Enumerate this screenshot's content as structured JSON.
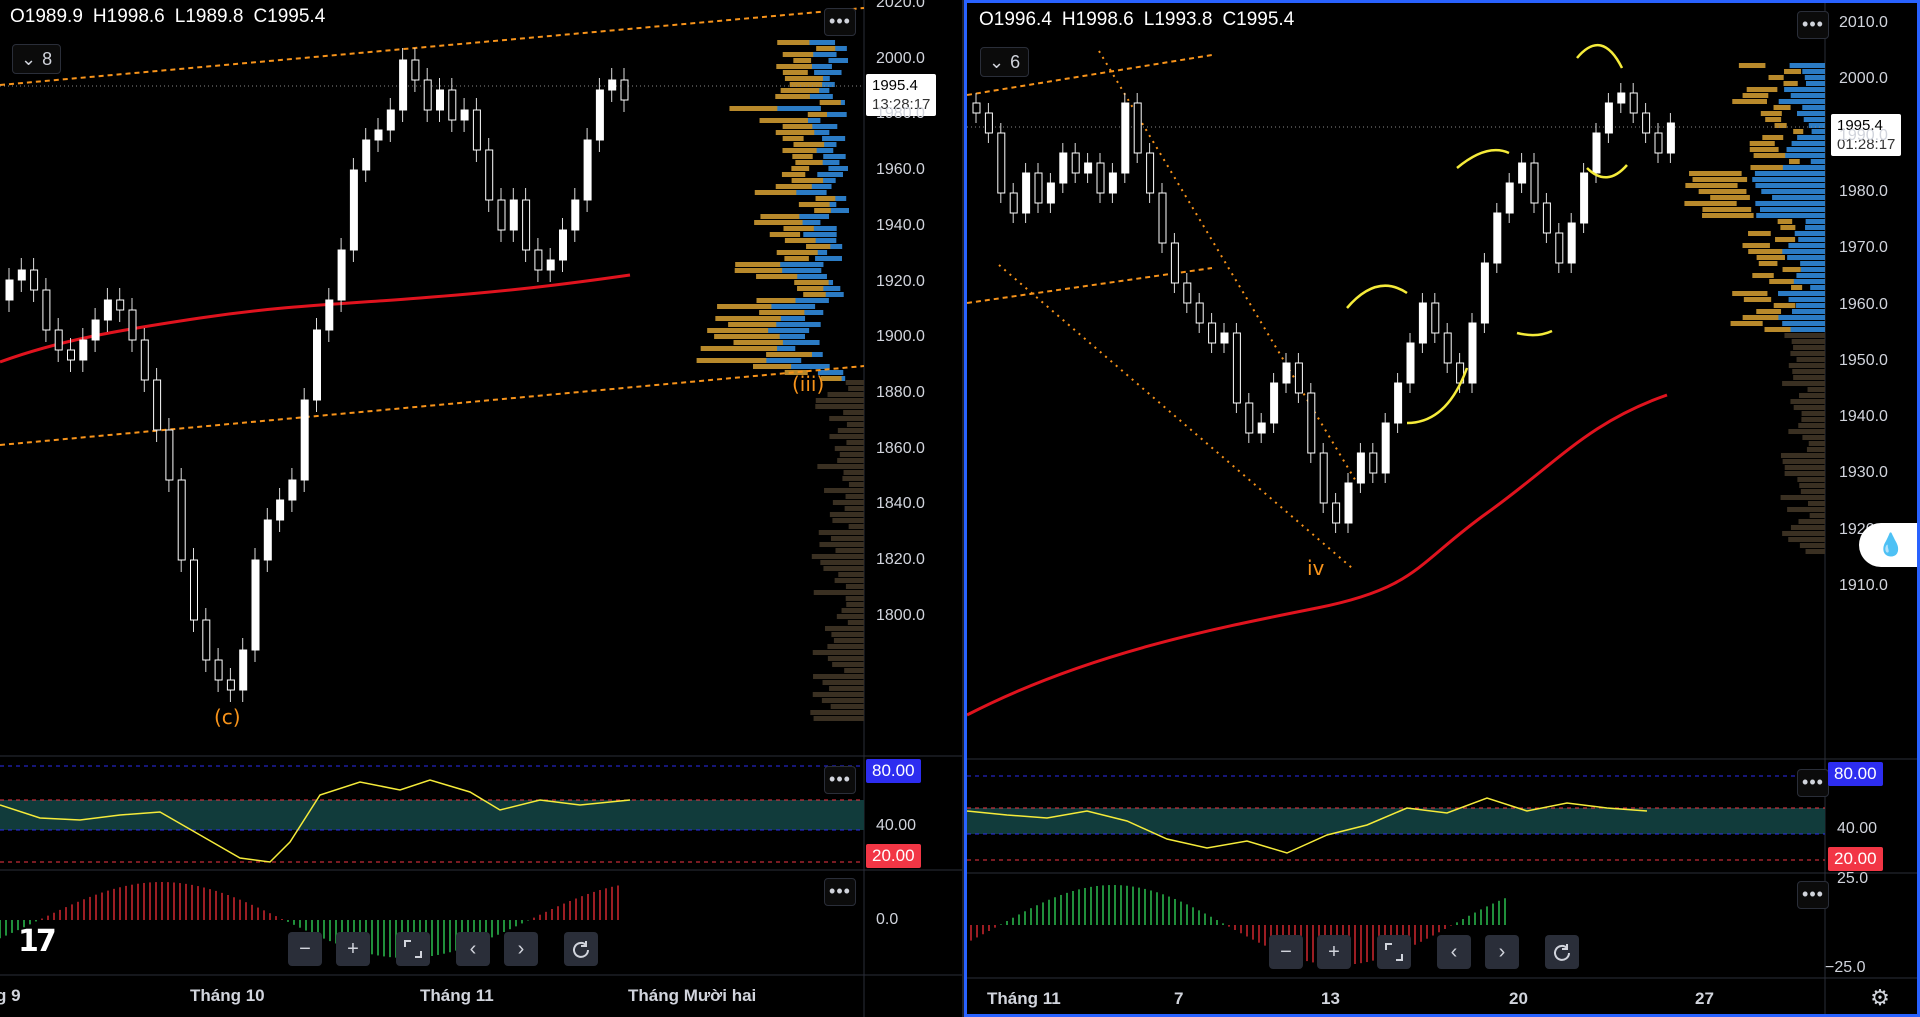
{
  "left_chart": {
    "ohlc": {
      "o": "O1989.9",
      "h": "H1998.6",
      "l": "L1989.8",
      "c": "C1995.4"
    },
    "interval_badge": "8",
    "menu_dots": "•••",
    "price_label": "1995.4",
    "countdown": "13:28:17",
    "y_ticks": [
      "2020.0",
      "2000.0",
      "1980.0",
      "1960.0",
      "1940.0",
      "1920.0",
      "1900.0",
      "1880.0",
      "1860.0",
      "1840.0",
      "1820.0",
      "1800.0"
    ],
    "wave_labels": {
      "c": "(c)",
      "iii": "(iii)"
    },
    "rsi": {
      "upper": "80.00",
      "mid": "40.00",
      "lower": "20.00"
    },
    "macd_zero": "0.0",
    "time_ticks": [
      "g 9",
      "Tháng 10",
      "Tháng 11",
      "Tháng Mười hai"
    ],
    "logo": "17",
    "colors": {
      "ma": "#e0131e",
      "trend": "#f7931a",
      "rsi_line": "#f5eb3a",
      "rsi_band": "#113b3b"
    }
  },
  "right_chart": {
    "ohlc": {
      "o": "O1996.4",
      "h": "H1998.6",
      "l": "L1993.8",
      "c": "C1995.4"
    },
    "interval_badge": "6",
    "menu_dots": "•••",
    "price_label": "1995.4",
    "countdown": "01:28:17",
    "y_ticks": [
      "2010.0",
      "2000.0",
      "1990.0",
      "1980.0",
      "1970.0",
      "1960.0",
      "1950.0",
      "1940.0",
      "1930.0",
      "1920.0",
      "1910.0"
    ],
    "wave_labels": {
      "iv": "iv"
    },
    "rsi": {
      "upper": "80.00",
      "mid": "40.00",
      "lower": "20.00"
    },
    "macd": {
      "upper": "25.0",
      "lower": "−25.0"
    },
    "time_ticks": [
      "Tháng 11",
      "7",
      "13",
      "20",
      "27"
    ]
  },
  "controls": {
    "zoom_out": "−",
    "zoom_in": "+",
    "scroll_left": "‹",
    "scroll_right": "›"
  },
  "icons": [
    "chevron-down-icon",
    "more-dots-icon",
    "zoom-out-icon",
    "zoom-in-icon",
    "fullscreen-icon",
    "scroll-left-icon",
    "scroll-right-icon",
    "reset-icon",
    "settings-icon",
    "drop-tool-icon"
  ]
}
